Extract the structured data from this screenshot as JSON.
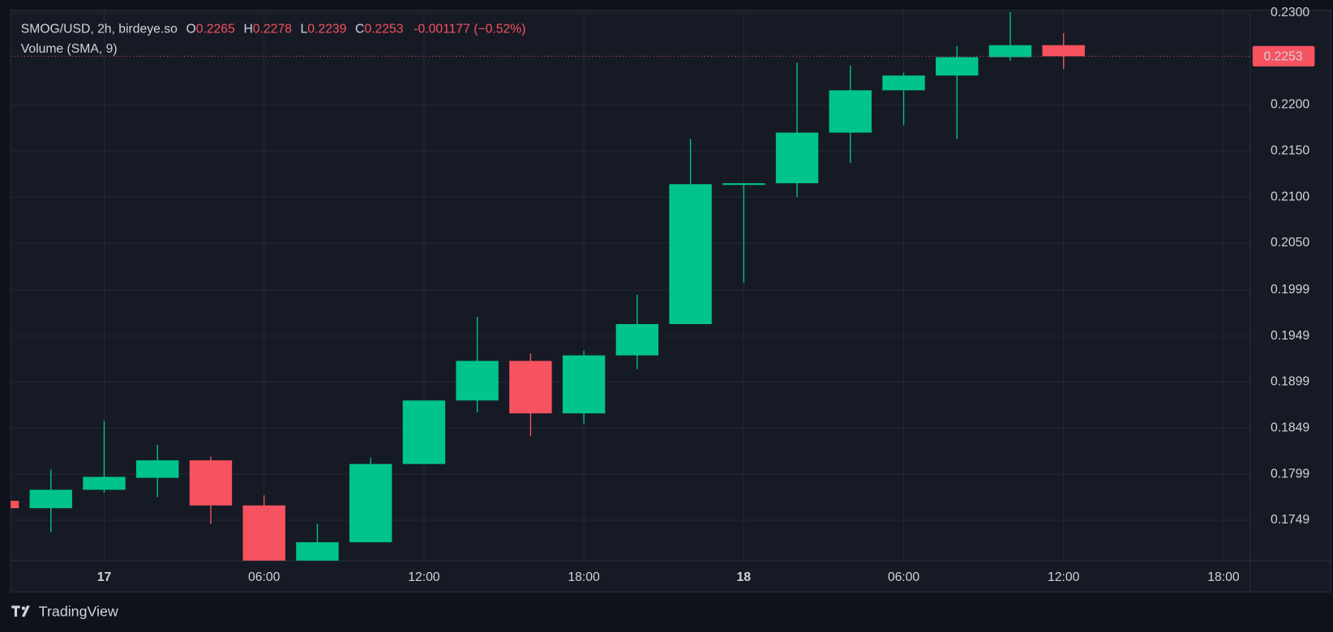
{
  "chart_data": {
    "type": "candlestick",
    "title": "SMOG/USD, 2h, birdeye.so",
    "legend_labels": {
      "open": "O",
      "high": "H",
      "low": "L",
      "close": "C"
    },
    "change": "-0.001177 (−0.52%)",
    "indicator": "Volume (SMA, 9)",
    "brand": "TradingView",
    "categories": [
      null,
      null,
      "17",
      null,
      null,
      "06:00",
      null,
      null,
      "12:00",
      null,
      null,
      "18:00",
      null,
      null,
      "18",
      null,
      null,
      "06:00",
      null,
      null,
      "12:00",
      null,
      null,
      "18:00"
    ],
    "open": [
      0.177,
      0.1762,
      0.1782,
      0.1795,
      0.1814,
      0.1765,
      0.1702,
      0.1725,
      0.181,
      0.1879,
      0.1922,
      0.1865,
      0.1928,
      0.1962,
      0.2114,
      0.2115,
      0.217,
      0.2216,
      0.2232,
      0.2252,
      0.2265,
      null,
      null,
      null
    ],
    "high": [
      0.1771,
      0.1804,
      0.1857,
      0.1831,
      0.1818,
      0.1776,
      0.1745,
      0.1817,
      0.1879,
      0.197,
      0.193,
      0.1933,
      0.1994,
      0.2163,
      0.2115,
      0.2246,
      0.2243,
      0.2235,
      0.2264,
      0.2301,
      0.2278,
      null,
      null,
      null
    ],
    "low": [
      0.1761,
      0.1736,
      0.1779,
      0.1774,
      0.1745,
      0.1695,
      0.1698,
      0.1725,
      0.181,
      0.1866,
      0.184,
      0.1854,
      0.1913,
      0.1962,
      0.2007,
      0.21,
      0.2137,
      0.2178,
      0.2163,
      0.2248,
      0.2239,
      null,
      null,
      null
    ],
    "close": [
      0.1762,
      0.1782,
      0.1796,
      0.1814,
      0.1765,
      0.1702,
      0.1725,
      0.181,
      0.1879,
      0.1922,
      0.1865,
      0.1928,
      0.1962,
      0.2114,
      0.2115,
      0.217,
      0.2216,
      0.2232,
      0.2252,
      0.2265,
      0.2253,
      null,
      null,
      null
    ],
    "up_color": "#00c48c",
    "down_color": "#f7525f",
    "ylim": [
      0.1705,
      0.2303
    ],
    "yticks": [
      {
        "value": 0.23,
        "label": "0.2300"
      },
      {
        "value": 0.22,
        "label": "0.2200"
      },
      {
        "value": 0.215,
        "label": "0.2150"
      },
      {
        "value": 0.21,
        "label": "0.2100"
      },
      {
        "value": 0.205,
        "label": "0.2050"
      },
      {
        "value": 0.1999,
        "label": "0.1999"
      },
      {
        "value": 0.1949,
        "label": "0.1949"
      },
      {
        "value": 0.1899,
        "label": "0.1899"
      },
      {
        "value": 0.1849,
        "label": "0.1849"
      },
      {
        "value": 0.1799,
        "label": "0.1799"
      },
      {
        "value": 0.1749,
        "label": "0.1749"
      }
    ],
    "last_price": 0.2253,
    "grid": true
  }
}
